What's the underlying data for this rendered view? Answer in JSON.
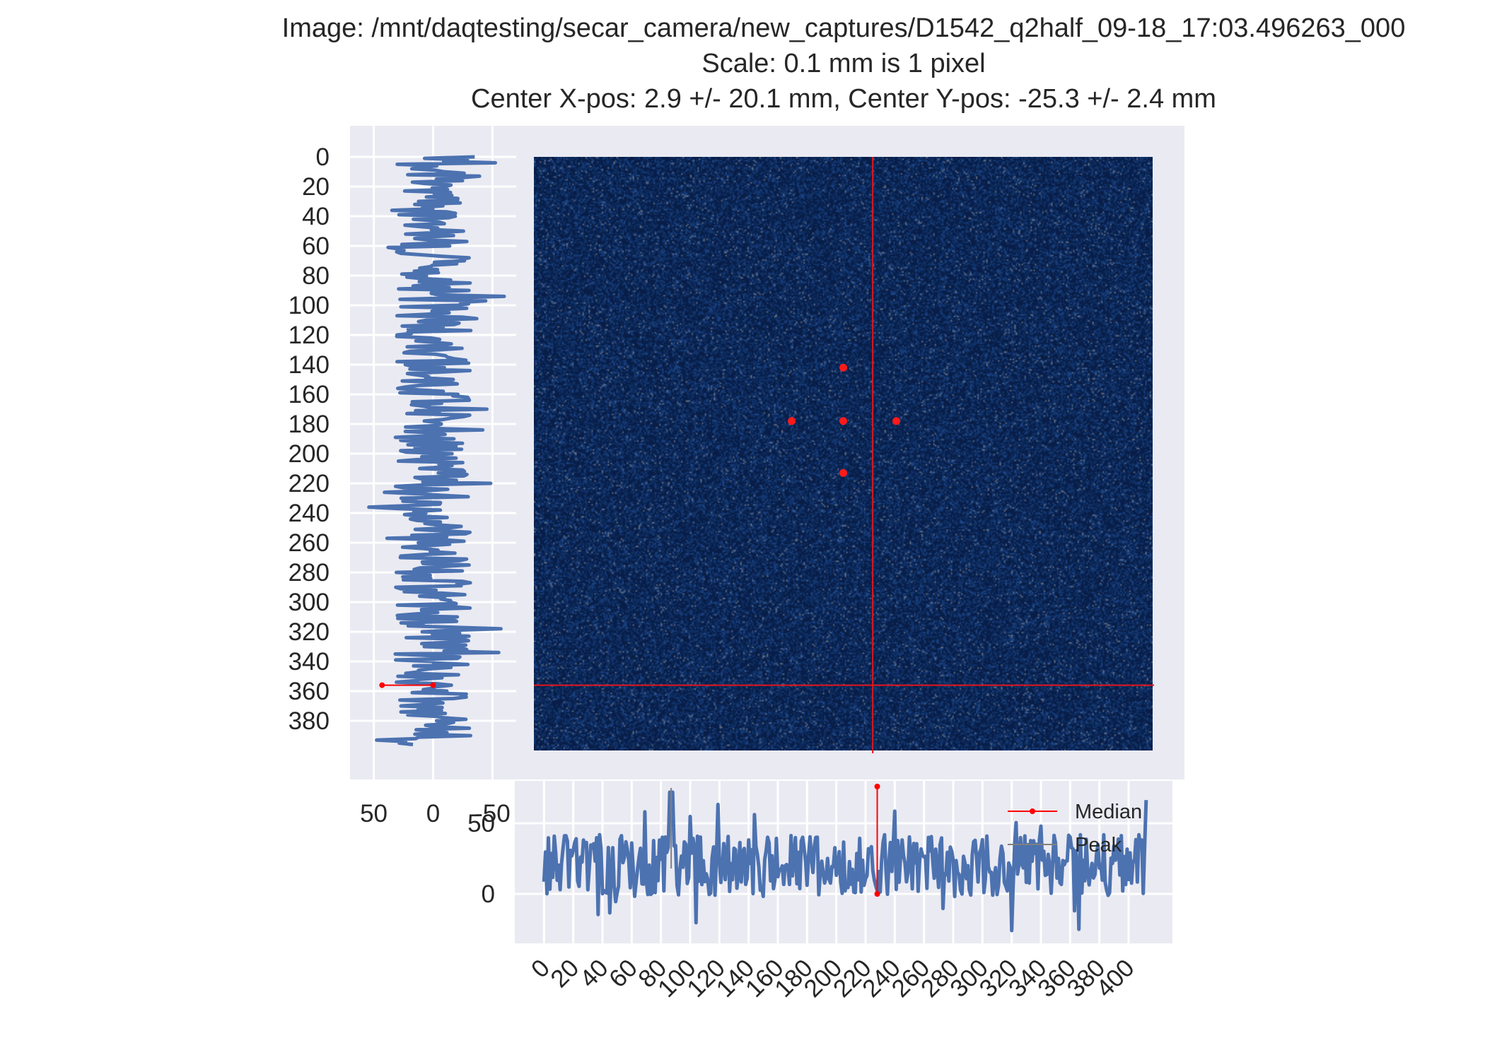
{
  "title": {
    "line1": "Image: /mnt/daqtesting/secar_camera/new_captures/D1542_q2half_09-18_17:03.496263_000",
    "line2": "Scale: 0.1 mm is 1 pixel",
    "line3": "Center X-pos: 2.9 +/- 20.1 mm, Center Y-pos: -25.3 +/- 2.4 mm"
  },
  "colors": {
    "panel_bg": "#eaeaf2",
    "grid": "#ffffff",
    "trace": "#4c72b0",
    "median": "#ff0000",
    "peak": "#808080",
    "image_dark": "#0b2a5a",
    "crosshair": "#e4161c",
    "marker": "#ff1a1a"
  },
  "chart_data": [
    {
      "type": "heatmap",
      "description_role": "main-image",
      "xlim": [
        0,
        420
      ],
      "ylim": [
        400,
        0
      ],
      "grid": false,
      "crosshair": {
        "x": 230,
        "y": 356
      },
      "markers": [
        {
          "x": 210,
          "y": 142
        },
        {
          "x": 175,
          "y": 178
        },
        {
          "x": 210,
          "y": 178
        },
        {
          "x": 246,
          "y": 178
        },
        {
          "x": 210,
          "y": 213
        }
      ]
    },
    {
      "type": "line",
      "description_role": "left-vertical-projection",
      "orientation": "vertical",
      "x_reversed": true,
      "xlim": [
        70,
        -70
      ],
      "ylim": [
        400,
        0
      ],
      "xticks": [
        "50",
        "0",
        "-50"
      ],
      "xtick_values": [
        50,
        0,
        -50
      ],
      "yticks": [
        "0",
        "20",
        "40",
        "60",
        "80",
        "100",
        "120",
        "140",
        "160",
        "180",
        "200",
        "220",
        "240",
        "260",
        "280",
        "300",
        "320",
        "340",
        "360",
        "380"
      ],
      "ytick_values": [
        0,
        20,
        40,
        60,
        80,
        100,
        120,
        140,
        160,
        180,
        200,
        220,
        240,
        260,
        280,
        300,
        320,
        340,
        360,
        380
      ],
      "median": {
        "y": 356,
        "x_from": 0,
        "x_to": 43
      },
      "series": [
        {
          "y_from": 0,
          "y_to": 396,
          "points": 397,
          "amplitude": 32,
          "seed": 7
        }
      ]
    },
    {
      "type": "line",
      "description_role": "bottom-horizontal-projection",
      "xlim": [
        -20,
        430
      ],
      "ylim": [
        -35,
        80
      ],
      "xticks": [
        "0",
        "20",
        "40",
        "60",
        "80",
        "100",
        "120",
        "140",
        "160",
        "180",
        "200",
        "220",
        "240",
        "260",
        "280",
        "300",
        "320",
        "340",
        "360",
        "380",
        "400"
      ],
      "xtick_values": [
        0,
        20,
        40,
        60,
        80,
        100,
        120,
        140,
        160,
        180,
        200,
        220,
        240,
        260,
        280,
        300,
        320,
        340,
        360,
        380,
        400
      ],
      "yticks": [
        "0",
        "50"
      ],
      "ytick_values": [
        0,
        50
      ],
      "legend": {
        "position": "upper-right",
        "entries": [
          {
            "label": "Median",
            "color": "#ff0000",
            "marker": true
          },
          {
            "label": "Peak",
            "color": "#808080",
            "marker": false
          }
        ]
      },
      "median": {
        "x": 228,
        "y_from": 0,
        "y_to": 76
      },
      "peak": {
        "x": 87,
        "y_from": 18,
        "y_to": 75
      },
      "series": [
        {
          "x_from": 0,
          "x_to": 412,
          "points": 413,
          "mean": 20,
          "amplitude": 22,
          "seed": 13
        }
      ]
    }
  ]
}
